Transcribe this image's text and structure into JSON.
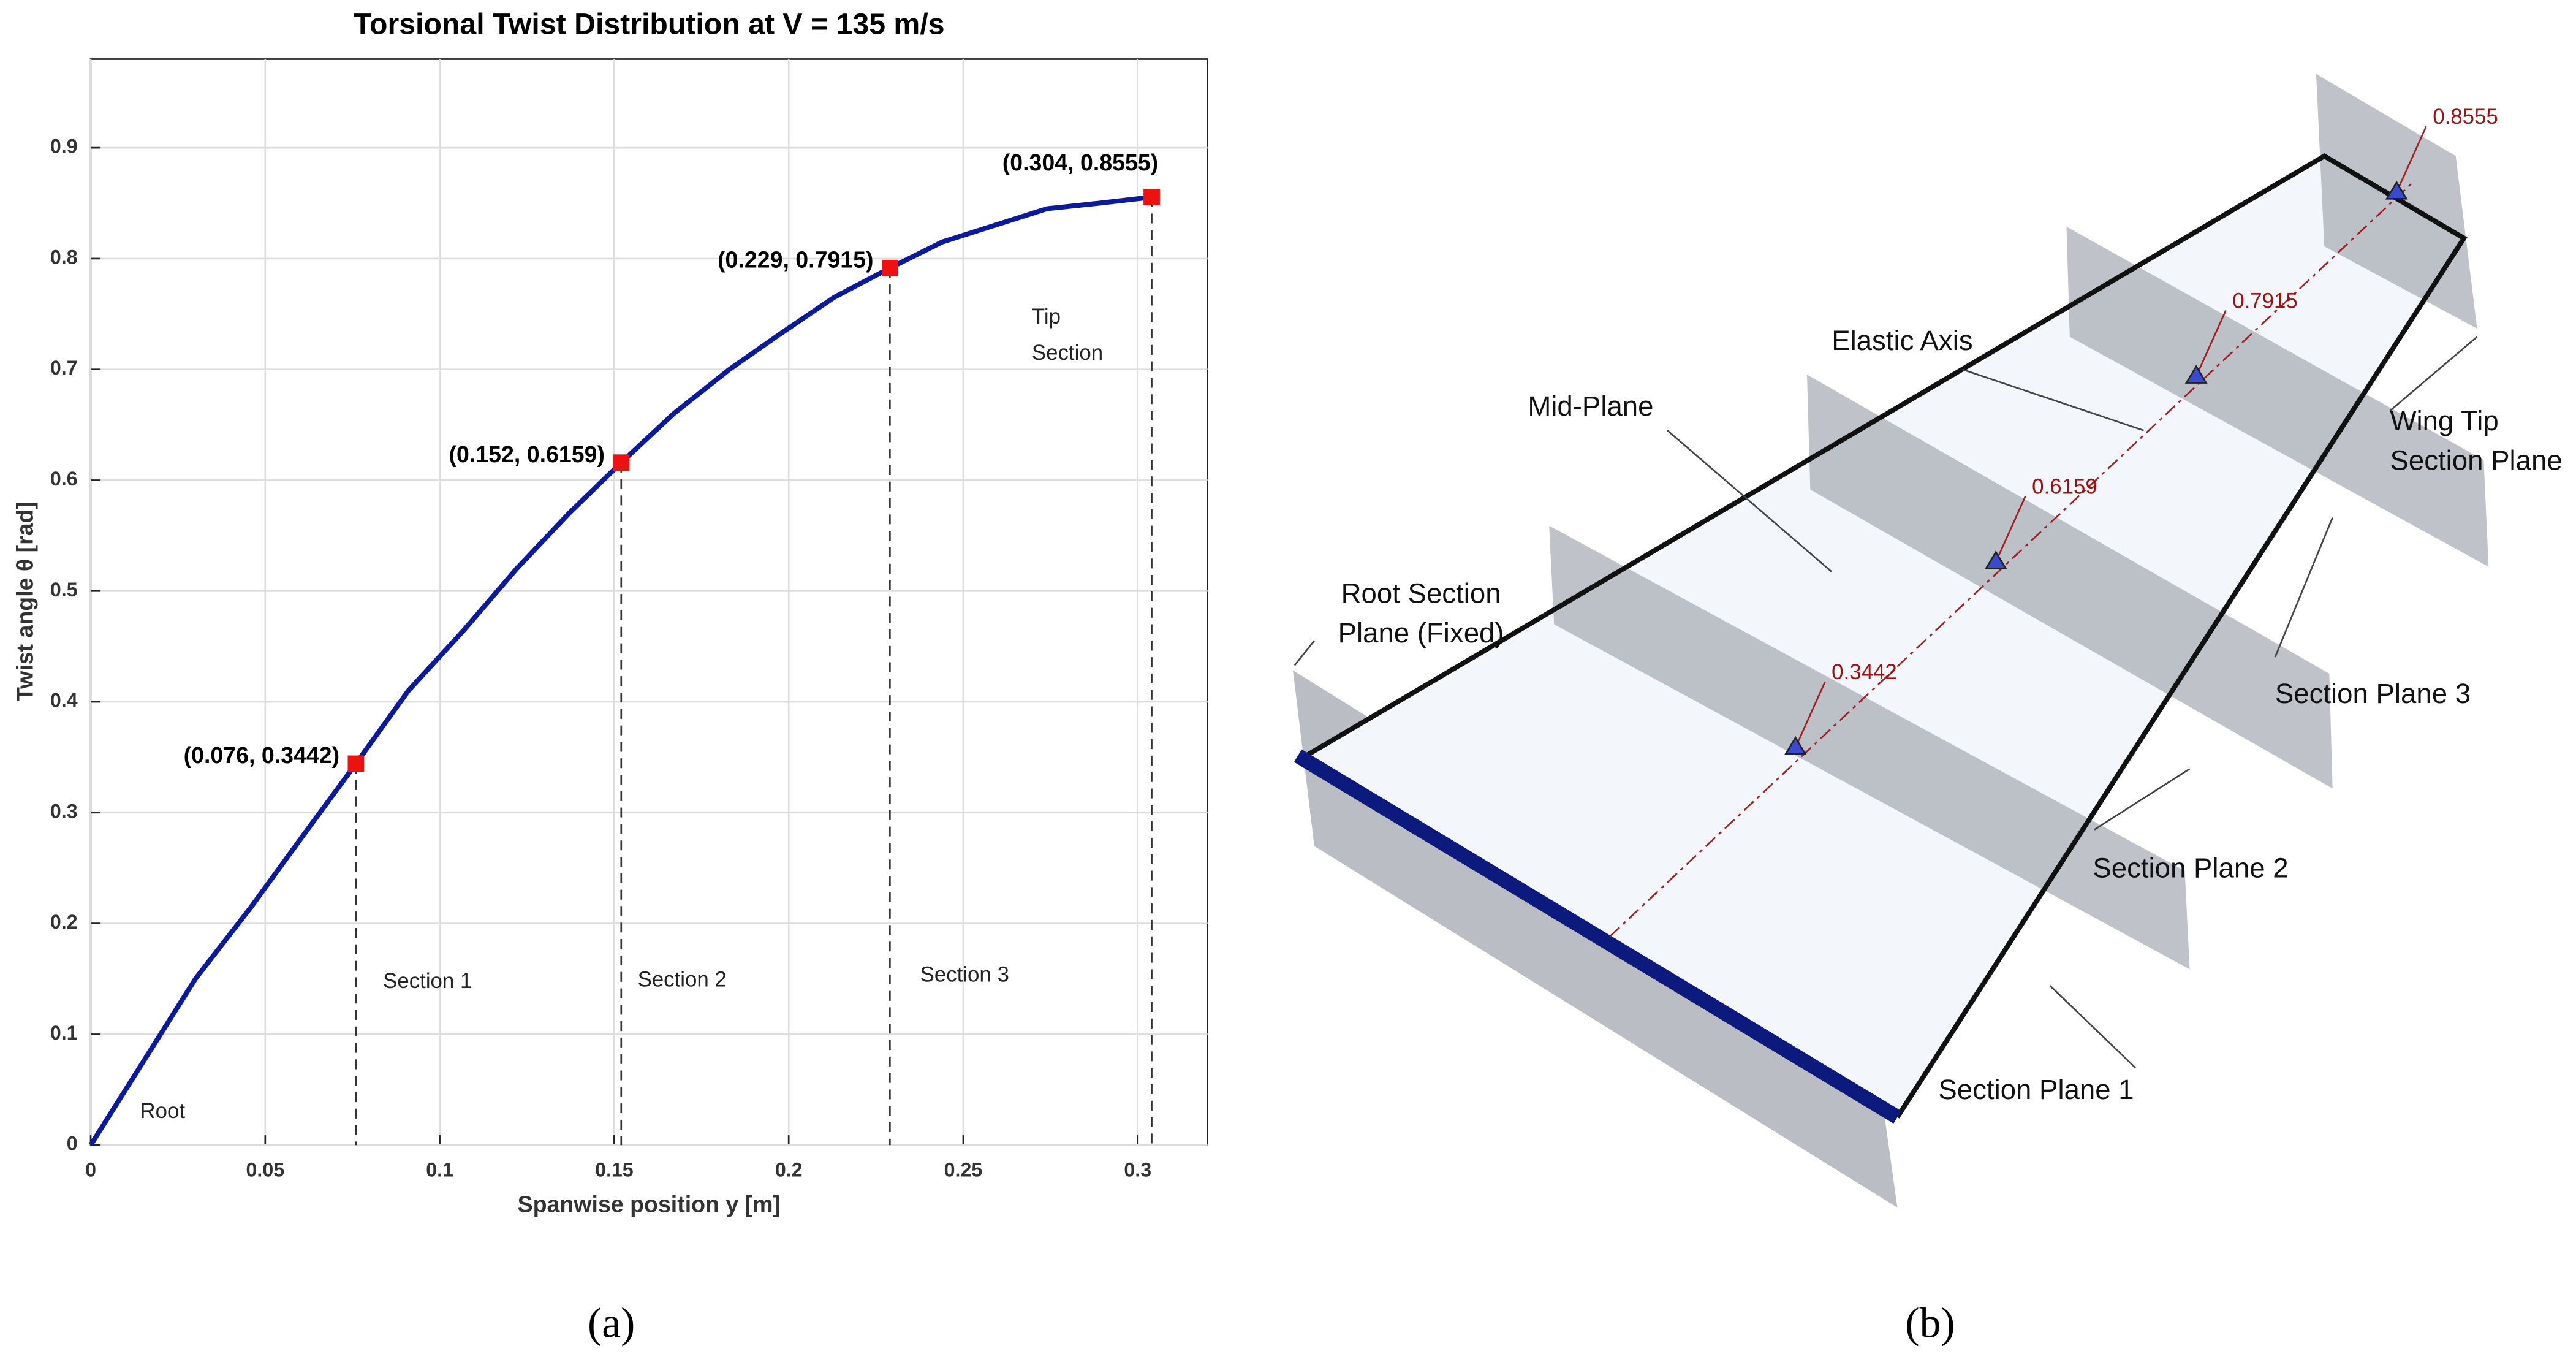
{
  "chart_data": {
    "type": "line",
    "title": "Torsional Twist Distribution at V = 135 m/s",
    "xlabel": "Spanwise position y [m]",
    "ylabel": "Twist angle θ [rad]",
    "x": [
      0,
      0.015,
      0.03,
      0.046,
      0.061,
      0.076,
      0.091,
      0.107,
      0.122,
      0.137,
      0.152,
      0.167,
      0.183,
      0.198,
      0.213,
      0.229,
      0.244,
      0.259,
      0.274,
      0.289,
      0.304
    ],
    "values": [
      0,
      0.075,
      0.15,
      0.215,
      0.28,
      0.3442,
      0.41,
      0.465,
      0.52,
      0.57,
      0.6159,
      0.66,
      0.7,
      0.733,
      0.765,
      0.7915,
      0.815,
      0.83,
      0.845,
      0.85,
      0.8555
    ],
    "color": "#0b1a9c",
    "markers": {
      "x": [
        0.076,
        0.152,
        0.229,
        0.304
      ],
      "values": [
        0.3442,
        0.6159,
        0.7915,
        0.8555
      ],
      "value_labels": [
        "(0.076, 0.3442)",
        "(0.152, 0.6159)",
        "(0.229, 0.7915)",
        "(0.304, 0.8555)"
      ],
      "color": "#ee1111"
    },
    "annotations": [
      "Root",
      "Section 1",
      "Section 2",
      "Section 3",
      "Tip Section"
    ],
    "xlim": [
      0,
      0.32
    ],
    "ylim": [
      0,
      0.98
    ],
    "xticks": [
      0,
      0.05,
      0.1,
      0.15,
      0.2,
      0.25,
      0.3
    ],
    "yticks": [
      0,
      0.1,
      0.2,
      0.3,
      0.4,
      0.5,
      0.6,
      0.7,
      0.8,
      0.9
    ],
    "grid": true
  },
  "diagram": {
    "callouts": [
      "Elastic Axis",
      "Mid-Plane",
      "Wing Tip Section Plane",
      "Root Section Plane (Fixed)",
      "Section Plane 3",
      "Section Plane 2",
      "Section Plane 1"
    ],
    "twist_labels": [
      "0.3442",
      "0.6159",
      "0.7915",
      "0.8555"
    ]
  },
  "captions": [
    "(a)",
    "(b)"
  ]
}
